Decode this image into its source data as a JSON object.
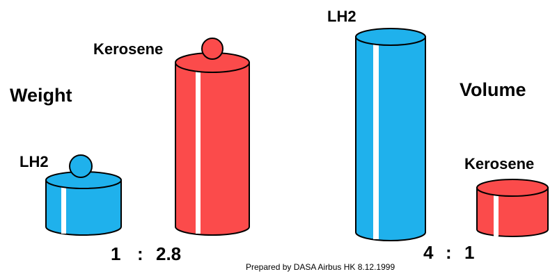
{
  "colors": {
    "lh2": "#1fb1ec",
    "kerosene": "#fb4b4b",
    "highlight": "#ffffff",
    "outline": "#000000"
  },
  "weight": {
    "heading": "Weight",
    "lh2_label": "LH2",
    "kerosene_label": "Kerosene",
    "ratio_left": "1",
    "ratio_sep": ":",
    "ratio_right": "2.8"
  },
  "volume": {
    "heading": "Volume",
    "lh2_label": "LH2",
    "kerosene_label": "Kerosene",
    "ratio_left": "4",
    "ratio_sep": ":",
    "ratio_right": "1"
  },
  "credit": "Prepared by  DASA Airbus HK 8.12.1999"
}
